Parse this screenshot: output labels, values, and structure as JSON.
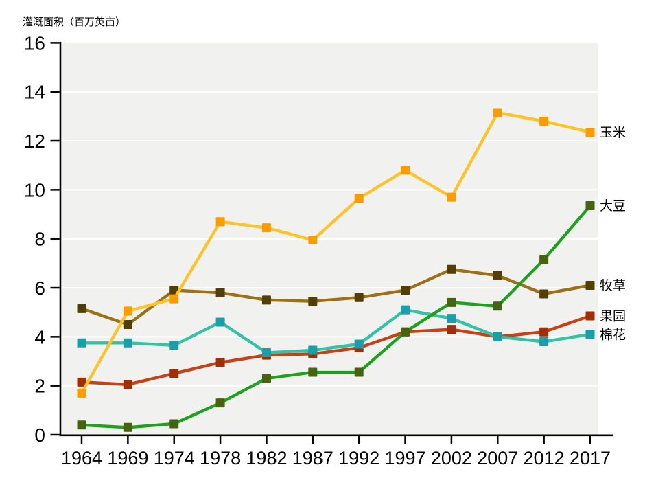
{
  "chart_data": {
    "type": "line",
    "title": "灌溉面积（百万英亩）",
    "x_categories": [
      "1964",
      "1969",
      "1974",
      "1978",
      "1982",
      "1987",
      "1992",
      "1997",
      "2002",
      "2007",
      "2012",
      "2017"
    ],
    "yticks": [
      "0",
      "2",
      "4",
      "6",
      "8",
      "10",
      "12",
      "14",
      "16"
    ],
    "ylim": [
      0,
      16
    ],
    "grid": {
      "horizontal_gridlines": true,
      "gridline_color": "#ffffff",
      "plot_background": "#f1f1ef"
    },
    "axis_color": "#000000",
    "legend_position": "labels-at-line-end-right",
    "series": [
      {
        "id": "corn",
        "name": "玉米",
        "z": 3,
        "line_color": "#fdc32b",
        "marker_color": "#f79d02",
        "values": [
          1.7,
          5.05,
          5.55,
          8.7,
          8.45,
          7.95,
          9.65,
          10.8,
          9.7,
          13.15,
          12.8,
          12.35
        ]
      },
      {
        "id": "soybean",
        "name": "大豆",
        "z": 4,
        "line_color": "#1ea11e",
        "marker_color": "#466310",
        "values": [
          0.4,
          0.3,
          0.45,
          1.3,
          2.3,
          2.55,
          2.55,
          4.2,
          5.4,
          5.25,
          7.15,
          9.35
        ]
      },
      {
        "id": "hay",
        "name": "牧草",
        "z": 0,
        "line_color": "#9c7014",
        "marker_color": "#523f05",
        "values": [
          5.15,
          4.5,
          5.9,
          5.8,
          5.5,
          5.45,
          5.6,
          5.9,
          6.75,
          6.5,
          5.75,
          6.1
        ]
      },
      {
        "id": "orchard",
        "name": "果园",
        "z": 1,
        "line_color": "#c64018",
        "marker_color": "#a02f06",
        "values": [
          2.15,
          2.05,
          2.5,
          2.95,
          3.25,
          3.3,
          3.55,
          4.2,
          4.3,
          4.0,
          4.2,
          4.85
        ]
      },
      {
        "id": "cotton",
        "name": "棉花",
        "z": 2,
        "line_color": "#34c2a4",
        "marker_color": "#1b9daa",
        "values": [
          3.75,
          3.75,
          3.65,
          4.6,
          3.35,
          3.45,
          3.7,
          5.1,
          4.75,
          4.0,
          3.8,
          4.1
        ]
      }
    ]
  }
}
